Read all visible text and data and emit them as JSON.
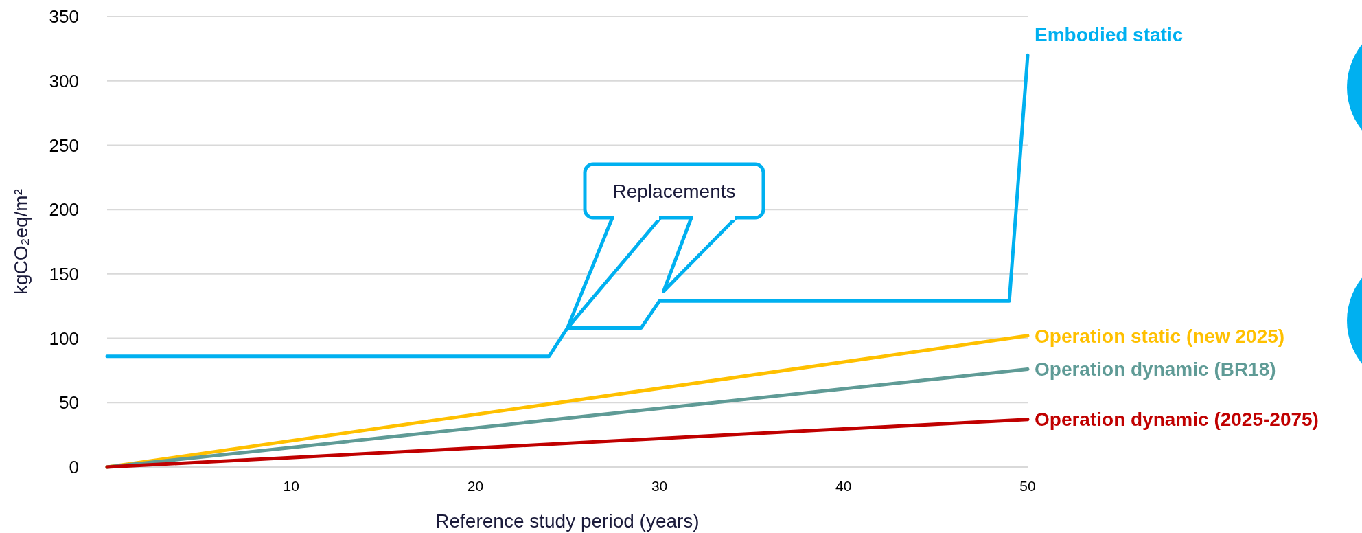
{
  "chart_data": {
    "type": "line",
    "xlabel": "Reference study period (years)",
    "ylabel": "kgCO₂eq/m²",
    "xlim": [
      0,
      50
    ],
    "xticks": [
      10,
      20,
      30,
      40,
      50
    ],
    "ylim": [
      0,
      350
    ],
    "yticks": [
      0,
      50,
      100,
      150,
      200,
      250,
      300,
      350
    ],
    "grid": "y",
    "marker": "none",
    "line_style": "solid",
    "annotations": [
      "Replacements"
    ],
    "series": [
      {
        "name": "Embodied static",
        "color": "#00b0f0",
        "x": [
          0,
          24,
          25,
          29,
          30,
          49,
          50
        ],
        "values": [
          86,
          86,
          108,
          108,
          129,
          129,
          320
        ]
      },
      {
        "name": "Operation static (new 2025)",
        "color": "#ffc000",
        "x": [
          0,
          50
        ],
        "values": [
          0,
          102
        ]
      },
      {
        "name": "Operation dynamic (BR18)",
        "color": "#5f9b96",
        "x": [
          0,
          50
        ],
        "values": [
          0,
          76
        ]
      },
      {
        "name": "Operation dynamic (2025-2075)",
        "color": "#c00000",
        "x": [
          0,
          50
        ],
        "values": [
          0,
          37
        ]
      }
    ]
  }
}
